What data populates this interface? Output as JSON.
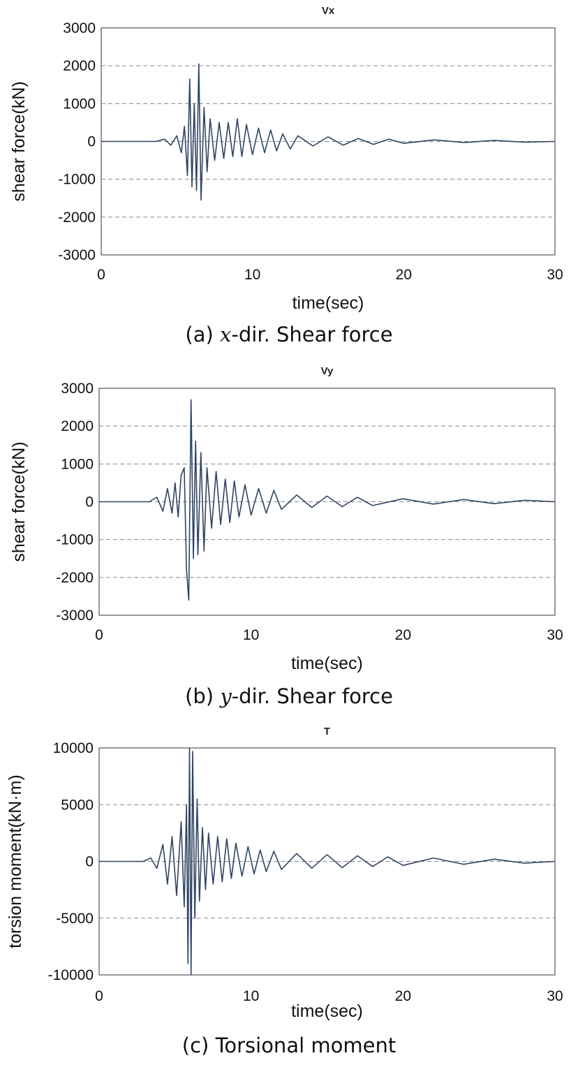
{
  "chart_data": [
    {
      "type": "line",
      "title": "Vx",
      "xlabel": "time(sec)",
      "ylabel": "shear force(kN)",
      "xlim": [
        0,
        30
      ],
      "ylim": [
        -3000,
        3000
      ],
      "xticks": [
        "0",
        "10",
        "20",
        "30"
      ],
      "yticks": [
        "3000",
        "2000",
        "1000",
        "0",
        "-1000",
        "-2000",
        "-3000"
      ],
      "grid": "horizontal-dashed",
      "caption": {
        "prefix": "(a) ",
        "var": "x",
        "suffix": "-dir. Shear force"
      },
      "series": [
        {
          "color": "#2e4463",
          "x": [
            0,
            3.6,
            4.2,
            4.6,
            5.0,
            5.3,
            5.5,
            5.7,
            5.85,
            6.0,
            6.15,
            6.3,
            6.45,
            6.6,
            6.8,
            7.0,
            7.2,
            7.5,
            7.8,
            8.1,
            8.4,
            8.7,
            9.0,
            9.3,
            9.6,
            10.0,
            10.4,
            10.8,
            11.2,
            11.6,
            12.0,
            12.5,
            13.0,
            14.0,
            15.0,
            16.0,
            17.0,
            18.0,
            19.0,
            20.0,
            22.0,
            24.0,
            26.0,
            28.0,
            30.0
          ],
          "y": [
            0,
            0,
            60,
            -100,
            150,
            -300,
            400,
            -900,
            1650,
            -1200,
            1000,
            -1300,
            2050,
            -1550,
            900,
            -800,
            600,
            -500,
            500,
            -450,
            500,
            -400,
            600,
            -400,
            450,
            -350,
            350,
            -300,
            300,
            -250,
            200,
            -200,
            150,
            -120,
            120,
            -100,
            80,
            -80,
            60,
            -50,
            40,
            -30,
            25,
            -20,
            0
          ]
        }
      ]
    },
    {
      "type": "line",
      "title": "Vy",
      "xlabel": "time(sec)",
      "ylabel": "shear force(kN)",
      "xlim": [
        0,
        30
      ],
      "ylim": [
        -3000,
        3000
      ],
      "xticks": [
        "0",
        "10",
        "20",
        "30"
      ],
      "yticks": [
        "3000",
        "2000",
        "1000",
        "0",
        "-1000",
        "-2000",
        "-3000"
      ],
      "grid": "horizontal-dashed",
      "caption": {
        "prefix": "(b) ",
        "var": "y",
        "suffix": "-dir. Shear force"
      },
      "series": [
        {
          "color": "#2e4463",
          "x": [
            0,
            3.3,
            3.8,
            4.2,
            4.5,
            4.8,
            5.0,
            5.2,
            5.4,
            5.6,
            5.75,
            5.9,
            6.05,
            6.2,
            6.35,
            6.5,
            6.7,
            6.9,
            7.1,
            7.4,
            7.7,
            8.0,
            8.3,
            8.6,
            8.9,
            9.2,
            9.6,
            10.0,
            10.5,
            11.0,
            11.5,
            12.0,
            13.0,
            14.0,
            15.0,
            16.0,
            17.0,
            18.0,
            20.0,
            22.0,
            24.0,
            26.0,
            28.0,
            30.0
          ],
          "y": [
            0,
            0,
            120,
            -250,
            350,
            -300,
            500,
            -400,
            700,
            900,
            -1800,
            -2600,
            2700,
            -1500,
            1600,
            -1400,
            1300,
            -1300,
            900,
            -700,
            800,
            -600,
            600,
            -550,
            550,
            -400,
            450,
            -350,
            350,
            -300,
            300,
            -200,
            180,
            -150,
            150,
            -130,
            120,
            -100,
            80,
            -60,
            60,
            -50,
            40,
            0
          ]
        }
      ]
    },
    {
      "type": "line",
      "title": "T",
      "xlabel": "time(sec)",
      "ylabel": "torsion moment(kN·m)",
      "xlim": [
        0,
        30
      ],
      "ylim": [
        -10000,
        10000
      ],
      "xticks": [
        "0",
        "10",
        "20",
        "30"
      ],
      "yticks": [
        "10000",
        "5000",
        "0",
        "-5000",
        "-10000"
      ],
      "grid": "horizontal-dashed",
      "caption": {
        "prefix": "(c) Torsional moment",
        "var": "",
        "suffix": ""
      },
      "series": [
        {
          "color": "#2e4463",
          "x": [
            0,
            2.9,
            3.4,
            3.8,
            4.2,
            4.5,
            4.8,
            5.1,
            5.4,
            5.6,
            5.75,
            5.85,
            5.95,
            6.05,
            6.15,
            6.3,
            6.45,
            6.6,
            6.8,
            7.0,
            7.2,
            7.5,
            7.8,
            8.1,
            8.4,
            8.7,
            9.0,
            9.4,
            9.8,
            10.2,
            10.6,
            11.0,
            11.5,
            12.0,
            13.0,
            14.0,
            15.0,
            16.0,
            17.0,
            18.0,
            19.0,
            20.0,
            22.0,
            24.0,
            26.0,
            28.0,
            30.0
          ],
          "y": [
            0,
            0,
            300,
            -600,
            1500,
            -2000,
            2200,
            -3000,
            3500,
            -4000,
            5000,
            -9000,
            10000,
            -10000,
            9700,
            -5000,
            5500,
            -3500,
            3000,
            -2500,
            2500,
            -2000,
            2200,
            -1800,
            2000,
            -1500,
            1600,
            -1300,
            1300,
            -1100,
            1000,
            -900,
            900,
            -700,
            700,
            -600,
            600,
            -550,
            500,
            -450,
            400,
            -350,
            300,
            -250,
            200,
            -150,
            0
          ]
        }
      ]
    }
  ]
}
